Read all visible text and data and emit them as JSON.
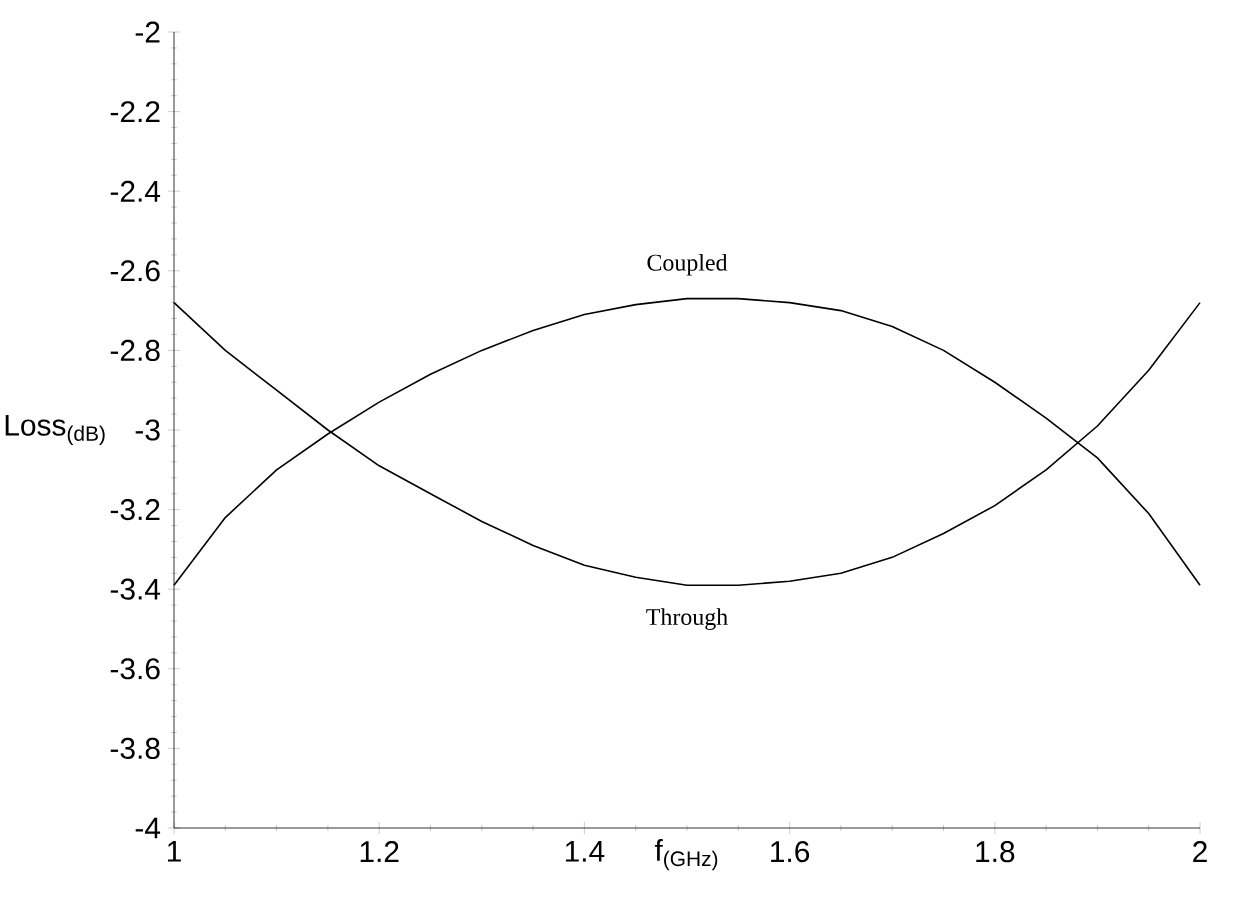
{
  "chart_data": {
    "type": "line",
    "xlabel": "f$_{(GHz)}$",
    "ylabel": "Loss$_{(dB)}$",
    "xlim": [
      1,
      2
    ],
    "xticks": [
      1,
      1.2,
      1.4,
      1.6,
      1.8,
      2
    ],
    "ylim": [
      -4,
      -2
    ],
    "yticks": [
      -4,
      -3.8,
      -3.6,
      -3.4,
      -3.2,
      -3,
      -2.8,
      -2.6,
      -2.4,
      -2.2,
      -2
    ],
    "x": [
      1,
      1.05,
      1.1,
      1.15,
      1.2,
      1.25,
      1.3,
      1.35,
      1.4,
      1.45,
      1.5,
      1.55,
      1.6,
      1.65,
      1.7,
      1.75,
      1.8,
      1.85,
      1.9,
      1.95,
      2
    ],
    "series": [
      {
        "name": "Coupled",
        "color": "#000000",
        "values": [
          -3.39,
          -3.22,
          -3.1,
          -3.01,
          -2.93,
          -2.86,
          -2.8,
          -2.75,
          -2.71,
          -2.685,
          -2.67,
          -2.67,
          -2.68,
          -2.7,
          -2.74,
          -2.8,
          -2.88,
          -2.97,
          -3.07,
          -3.21,
          -3.39
        ]
      },
      {
        "name": "Through",
        "color": "#000000",
        "values": [
          -2.68,
          -2.8,
          -2.9,
          -3.0,
          -3.09,
          -3.16,
          -3.23,
          -3.29,
          -3.34,
          -3.37,
          -3.39,
          -3.39,
          -3.38,
          -3.36,
          -3.32,
          -3.26,
          -3.19,
          -3.1,
          -2.99,
          -2.85,
          -2.68
        ]
      }
    ],
    "grid": false,
    "legend": false,
    "marker": "none",
    "line_style": "solid"
  }
}
